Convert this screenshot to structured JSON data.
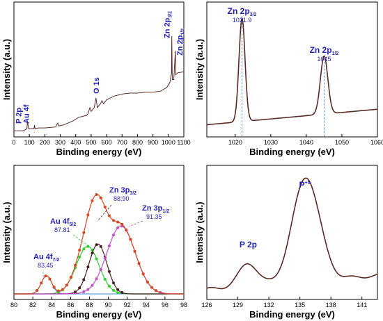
{
  "chart_data": [
    {
      "type": "line",
      "panel": "survey",
      "xlabel": "Binding energy (eV)",
      "ylabel": "Intensity (a.u.)",
      "xlim": [
        0,
        1100
      ],
      "xticks": [
        0,
        100,
        200,
        300,
        400,
        500,
        600,
        700,
        800,
        900,
        1000,
        1100
      ],
      "line_color": "#5a2a22",
      "series": [
        {
          "x": [
            0,
            30,
            60,
            84,
            88,
            95,
            130,
            133,
            137,
            160,
            200,
            270,
            284,
            290,
            320,
            380,
            420,
            470,
            480,
            492,
            500,
            520,
            531,
            540,
            560,
            570,
            580,
            600,
            650,
            700,
            750,
            800,
            850,
            900,
            950,
            990,
            1010,
            1020,
            1022,
            1025,
            1035,
            1045,
            1048,
            1060,
            1100
          ],
          "y": [
            0.02,
            0.02,
            0.02,
            0.04,
            0.12,
            0.04,
            0.04,
            0.08,
            0.04,
            0.05,
            0.05,
            0.06,
            0.1,
            0.07,
            0.08,
            0.12,
            0.16,
            0.18,
            0.2,
            0.26,
            0.22,
            0.26,
            0.36,
            0.26,
            0.3,
            0.33,
            0.3,
            0.34,
            0.38,
            0.4,
            0.41,
            0.41,
            0.42,
            0.42,
            0.43,
            0.47,
            0.52,
            0.62,
            1.0,
            0.55,
            0.55,
            0.85,
            0.6,
            0.62,
            0.63
          ]
        }
      ],
      "annotations": [
        {
          "text": "Au 4f",
          "x": 84
        },
        {
          "text": "P 2p",
          "x": 133
        },
        {
          "text": "O 1s",
          "x": 531
        },
        {
          "text": "Zn 2p",
          "sub": "3/2",
          "x": 1021.9
        },
        {
          "text": "Zn 2p",
          "sub": "1/2",
          "x": 1045
        }
      ]
    },
    {
      "type": "line",
      "panel": "zn2p",
      "xlabel": "Binding energy (eV)",
      "ylabel": "Intensity (a.u.)",
      "xlim": [
        1012,
        1060
      ],
      "xticks": [
        1020,
        1030,
        1040,
        1050,
        1060
      ],
      "line_color": "#5a2a22",
      "peaks": [
        {
          "label": "Zn 2p",
          "sub": "3/2",
          "position": 1021.9,
          "value_label": "1021.9",
          "height": 1.0,
          "width": 0.85
        },
        {
          "label": "Zn 2p",
          "sub": "1/2",
          "position": 1045,
          "value_label": "1045",
          "height": 0.56,
          "width": 1.05
        }
      ],
      "baseline": [
        0.05,
        0.2
      ]
    },
    {
      "type": "scatter",
      "panel": "au4f_zn3p",
      "xlabel": "Binding energy (eV)",
      "ylabel": "Intensity (a.u.)",
      "xlim": [
        80,
        98
      ],
      "xticks": [
        80,
        82,
        84,
        86,
        88,
        90,
        92,
        94,
        96,
        98
      ],
      "series": [
        {
          "name": "Au 4f 7/2",
          "color": "#5aa0d8",
          "center": 83.45,
          "height": 0.16,
          "width": 0.55
        },
        {
          "name": "Au 4f 5/2",
          "color": "#2fd12f",
          "center": 87.81,
          "height": 0.42,
          "width": 1.2
        },
        {
          "name": "Zn 3p 3/2",
          "color": "#4a1c1c",
          "center": 88.9,
          "height": 0.44,
          "width": 0.95
        },
        {
          "name": "Zn 3p 1/2",
          "color": "#c24dc8",
          "center": 91.35,
          "height": 0.6,
          "width": 1.5
        },
        {
          "name": "Envelope",
          "color": "#d9461f",
          "center": 0,
          "height": 0,
          "width": 0
        }
      ],
      "annotations": [
        {
          "text": "Au 4f",
          "sub": "7/2",
          "value": "83.45"
        },
        {
          "text": "Au 4f",
          "sub": "5/2",
          "value": "87.81"
        },
        {
          "text": "Zn 3p",
          "sub": "3/2",
          "value": "88.90"
        },
        {
          "text": "Zn 3p",
          "sub": "1/2",
          "value": "91.35"
        }
      ]
    },
    {
      "type": "line",
      "panel": "p2p",
      "xlabel": "Binding energy (eV)",
      "ylabel": "Intensity (a.u.)",
      "xlim": [
        126,
        142.5
      ],
      "xticks": [
        126,
        129,
        132,
        135,
        138,
        141
      ],
      "line_color": "#5a2a22",
      "peaks": [
        {
          "label": "P 2p",
          "position": 130.0,
          "height": 0.2,
          "width": 0.9
        },
        {
          "label": "P",
          "sup": "+5",
          "position": 135.6,
          "height": 0.92,
          "width": 1.3
        }
      ],
      "annotations": [
        {
          "text": "P 2p"
        },
        {
          "text": "P",
          "sup": "+5"
        }
      ]
    }
  ]
}
